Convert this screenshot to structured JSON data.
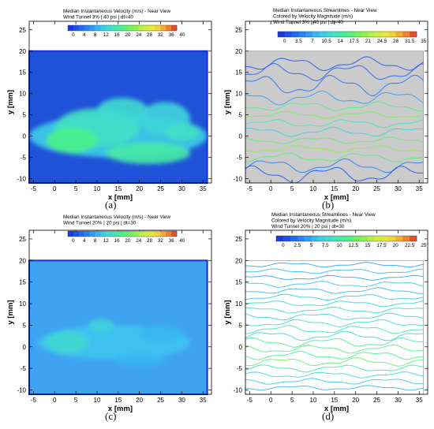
{
  "chart_data": [
    {
      "type": "heatmap",
      "title": "Median Instantaneous Velocity (m/s) - Near View",
      "subtitle": "Wind Tunnel 3% | 40 psi | dt=40",
      "colorbar_ticks": [
        "0",
        "4",
        "8",
        "12",
        "16",
        "20",
        "24",
        "28",
        "32",
        "36",
        "40"
      ],
      "colorbar_range": [
        0,
        40
      ],
      "xlabel": "x [mm]",
      "ylabel": "y [mm]",
      "xlim": [
        -6,
        37
      ],
      "ylim": [
        -11,
        27
      ],
      "xticks": [
        -5,
        0,
        5,
        10,
        15,
        20,
        25,
        30,
        35
      ],
      "yticks": [
        -10,
        -5,
        0,
        5,
        10,
        15,
        20,
        25
      ],
      "plot_extent": {
        "x": [
          -6,
          36
        ],
        "y": [
          -11,
          20
        ]
      },
      "background": "#1f52d8",
      "blobs": [
        {
          "x": 15,
          "y": 0,
          "rx": 21,
          "ry": 5,
          "value": 13
        },
        {
          "x": 10,
          "y": 2,
          "rx": 10,
          "ry": 4.5,
          "value": 16
        },
        {
          "x": 16,
          "y": 6,
          "rx": 6,
          "ry": 3,
          "value": 15
        },
        {
          "x": 26,
          "y": 4,
          "rx": 6,
          "ry": 4,
          "value": 14
        },
        {
          "x": 4,
          "y": -1,
          "rx": 6,
          "ry": 3,
          "value": 20
        },
        {
          "x": 22,
          "y": -4,
          "rx": 10,
          "ry": 2.5,
          "value": 18
        },
        {
          "x": 30,
          "y": 1,
          "rx": 4,
          "ry": 2,
          "value": 16
        }
      ],
      "caption": "(a)"
    },
    {
      "type": "streamlines",
      "title": "Median Instantaneous Streamlines - Near View",
      "subtitle": "Colored by Velocity Magnitude (m/s)",
      "subtitle2": "Wind Tunnel 3% | 40 psi | dt=40",
      "colorbar_ticks": [
        "0",
        "3.5",
        "7",
        "10.5",
        "14",
        "17.5",
        "21",
        "24.5",
        "28",
        "31.5",
        "35"
      ],
      "colorbar_range": [
        0,
        35
      ],
      "xlabel": "x [mm]",
      "ylabel": "y [mm]",
      "xlim": [
        -6,
        37
      ],
      "ylim": [
        -11,
        27
      ],
      "xticks": [
        -5,
        0,
        5,
        10,
        15,
        20,
        25,
        30,
        35
      ],
      "yticks": [
        -10,
        -5,
        0,
        5,
        10,
        15,
        20,
        25
      ],
      "plot_extent": {
        "x": [
          -6,
          36
        ],
        "y": [
          -11,
          20
        ]
      },
      "background": "#cbcbcb",
      "lines": [
        {
          "y": 17,
          "amp": 1.2,
          "value": 3
        },
        {
          "y": 15,
          "amp": 1.5,
          "value": 4
        },
        {
          "y": 12,
          "amp": 1.8,
          "value": 5
        },
        {
          "y": 9,
          "amp": 1.2,
          "value": 8
        },
        {
          "y": 7,
          "amp": 0.8,
          "value": 18
        },
        {
          "y": 5,
          "amp": 0.6,
          "value": 21
        },
        {
          "y": 3,
          "amp": 0.7,
          "value": 15
        },
        {
          "y": 1,
          "amp": 0.8,
          "value": 12
        },
        {
          "y": -1,
          "amp": 0.6,
          "value": 19
        },
        {
          "y": -3,
          "amp": 0.6,
          "value": 22
        },
        {
          "y": -5,
          "amp": 0.8,
          "value": 18
        },
        {
          "y": -7,
          "amp": 1.2,
          "value": 6
        },
        {
          "y": -9,
          "amp": 1.5,
          "value": 3
        }
      ],
      "caption": "(b)"
    },
    {
      "type": "heatmap",
      "title": "Median Instantaneous Velocity (m/s) - Near View",
      "subtitle": "Wind Tunnel 20% | 20 psi | dt=30",
      "colorbar_ticks": [
        "0",
        "4",
        "8",
        "12",
        "16",
        "20",
        "24",
        "28",
        "32",
        "36",
        "40"
      ],
      "colorbar_range": [
        0,
        40
      ],
      "xlabel": "x [mm]",
      "ylabel": "y [mm]",
      "xlim": [
        -6,
        37
      ],
      "ylim": [
        -11,
        27
      ],
      "xticks": [
        -5,
        0,
        5,
        10,
        15,
        20,
        25,
        30,
        35
      ],
      "yticks": [
        -10,
        -5,
        0,
        5,
        10,
        15,
        20,
        25
      ],
      "plot_extent": {
        "x": [
          -6,
          36
        ],
        "y": [
          -11,
          20
        ]
      },
      "background": "#3ea2f0",
      "blobs": [
        {
          "x": 14,
          "y": 1,
          "rx": 18,
          "ry": 4,
          "value": 12
        },
        {
          "x": 3,
          "y": 1,
          "rx": 5,
          "ry": 2.5,
          "value": 15
        },
        {
          "x": 11,
          "y": 5,
          "rx": 3,
          "ry": 1.5,
          "value": 14
        },
        {
          "x": 25,
          "y": 3,
          "rx": 5,
          "ry": 2,
          "value": 11
        },
        {
          "x": 20,
          "y": -3,
          "rx": 6,
          "ry": 1.5,
          "value": 11
        }
      ],
      "caption": "(c)"
    },
    {
      "type": "streamlines",
      "title": "Median Instantaneous Streamlines - Near View",
      "subtitle": "Colored by Velocity Magnitude (m/s)",
      "subtitle2": "Wind Tunnel 20% | 20 psi | dt=30",
      "colorbar_ticks": [
        "0",
        "2.5",
        "5",
        "7.5",
        "10",
        "12.5",
        "15",
        "17.5",
        "20",
        "22.5",
        "25"
      ],
      "colorbar_range": [
        0,
        25
      ],
      "xlabel": "x [mm]",
      "ylabel": "y [mm]",
      "xlim": [
        -6,
        37
      ],
      "ylim": [
        -11,
        27
      ],
      "xticks": [
        -5,
        0,
        5,
        10,
        15,
        20,
        25,
        30,
        35
      ],
      "yticks": [
        -10,
        -5,
        0,
        5,
        10,
        15,
        20,
        25
      ],
      "plot_extent": {
        "x": [
          -6,
          36
        ],
        "y": [
          -11,
          20
        ]
      },
      "background": "#ffffff",
      "lines": [
        {
          "y": 19,
          "amp": 0.4,
          "value": 6
        },
        {
          "y": 17.5,
          "amp": 0.4,
          "value": 7
        },
        {
          "y": 16,
          "amp": 0.4,
          "value": 6
        },
        {
          "y": 14.5,
          "amp": 0.5,
          "value": 8
        },
        {
          "y": 13,
          "amp": 0.5,
          "value": 7
        },
        {
          "y": 11.5,
          "amp": 0.5,
          "value": 8
        },
        {
          "y": 10,
          "amp": 0.5,
          "value": 9
        },
        {
          "y": 8.5,
          "amp": 0.5,
          "value": 10
        },
        {
          "y": 7,
          "amp": 0.6,
          "value": 9
        },
        {
          "y": 5.5,
          "amp": 0.6,
          "value": 10
        },
        {
          "y": 4,
          "amp": 0.7,
          "value": 11
        },
        {
          "y": 2.5,
          "amp": 0.8,
          "value": 9
        },
        {
          "y": 1,
          "amp": 0.8,
          "value": 12
        },
        {
          "y": -0.5,
          "amp": 0.7,
          "value": 13
        },
        {
          "y": -2,
          "amp": 0.7,
          "value": 12
        },
        {
          "y": -3.5,
          "amp": 0.7,
          "value": 14
        },
        {
          "y": -5,
          "amp": 0.6,
          "value": 11
        },
        {
          "y": -6.5,
          "amp": 0.5,
          "value": 9
        },
        {
          "y": -8,
          "amp": 0.5,
          "value": 8
        },
        {
          "y": -9.5,
          "amp": 0.4,
          "value": 7
        }
      ],
      "caption": "(d)"
    }
  ]
}
